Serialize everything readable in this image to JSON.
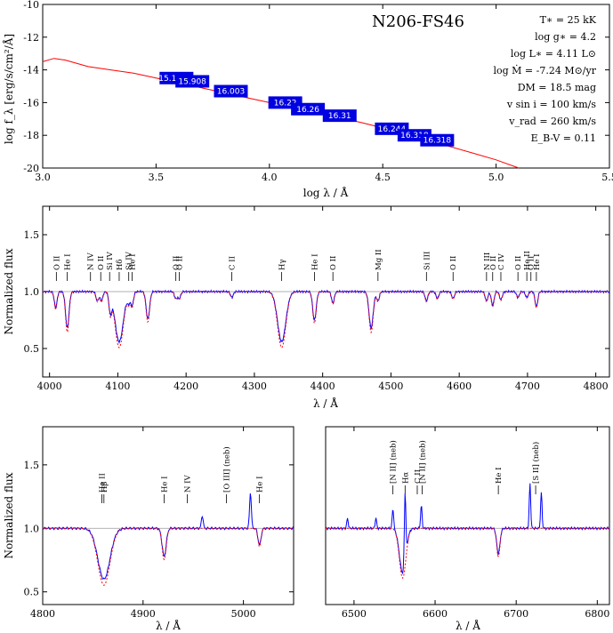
{
  "colors": {
    "model": "#ff0000",
    "observed": "#0000ff",
    "box": "#0000e0",
    "guide": "#999999"
  },
  "sed": {
    "type": "line",
    "title": "N206-FS46",
    "xlabel": "log λ / Å",
    "ylabel": "log f_λ [erg/s/cm²/Å]",
    "xlim": [
      3.0,
      5.5
    ],
    "ylim": [
      -20,
      -10
    ],
    "xticks": [
      "3.0",
      "3.5",
      "4.0",
      "4.5",
      "5.0",
      "5.5"
    ],
    "yticks": [
      "-10",
      "-12",
      "-14",
      "-16",
      "-18",
      "-20"
    ],
    "params": [
      "T∗ = 25 kK",
      "log g∗ = 4.2",
      "log L∗ = 4.11 L⊙",
      "log Ṁ = -7.24 M⊙/yr",
      "DM = 18.5 mag",
      "v sin i = 100 km/s",
      "v_rad = 260 km/s",
      "E_B-V = 0.11"
    ],
    "model_x": [
      3.0,
      3.05,
      3.1,
      3.2,
      3.3,
      3.4,
      3.5,
      3.6,
      3.7,
      3.8,
      3.9,
      4.0,
      4.1,
      4.2,
      4.3,
      4.4,
      4.5,
      4.6,
      4.7,
      4.8,
      4.9,
      5.0,
      5.1
    ],
    "model_y": [
      -13.5,
      -13.3,
      -13.4,
      -13.8,
      -14.0,
      -14.2,
      -14.5,
      -14.8,
      -15.1,
      -15.4,
      -15.7,
      -16.0,
      -16.3,
      -16.6,
      -16.9,
      -17.2,
      -17.55,
      -17.9,
      -18.3,
      -18.7,
      -19.1,
      -19.5,
      -20.0
    ],
    "photometry": [
      {
        "logl": 3.59,
        "logf": -14.5,
        "label": "15.15.73"
      },
      {
        "logl": 3.66,
        "logf": -14.7,
        "label": "15.908"
      },
      {
        "logl": 3.83,
        "logf": -15.3,
        "label": "16.003"
      },
      {
        "logl": 4.07,
        "logf": -16.0,
        "label": "16.22"
      },
      {
        "logl": 4.17,
        "logf": -16.4,
        "label": "16.26"
      },
      {
        "logl": 4.31,
        "logf": -16.8,
        "label": "16.31"
      },
      {
        "logl": 4.54,
        "logf": -17.6,
        "label": "16.244"
      },
      {
        "logl": 4.64,
        "logf": -18.0,
        "label": "16.318"
      },
      {
        "logl": 4.74,
        "logf": -18.3,
        "label": "16.318"
      }
    ]
  },
  "blue": {
    "type": "line",
    "xlabel": "λ / Å",
    "ylabel": "Normalized flux",
    "xlim": [
      3990,
      4820
    ],
    "ylim": [
      0.25,
      1.75
    ],
    "xticks": [
      "4000",
      "4100",
      "4200",
      "4300",
      "4400",
      "4500",
      "4600",
      "4700",
      "4800"
    ],
    "yticks": [
      "0.5",
      "1.0",
      "1.5"
    ],
    "absorptions": [
      {
        "w": 4009,
        "d": 0.14,
        "s": 2
      },
      {
        "w": 4026,
        "d": 0.32,
        "s": 2.5
      },
      {
        "w": 4070,
        "d": 0.08,
        "s": 2
      },
      {
        "w": 4076,
        "d": 0.08,
        "s": 2
      },
      {
        "w": 4089,
        "d": 0.16,
        "s": 2
      },
      {
        "w": 4102,
        "d": 0.44,
        "s": 6
      },
      {
        "w": 4116,
        "d": 0.08,
        "s": 2
      },
      {
        "w": 4121,
        "d": 0.12,
        "s": 2
      },
      {
        "w": 4144,
        "d": 0.24,
        "s": 2.5
      },
      {
        "w": 4185,
        "d": 0.06,
        "s": 2
      },
      {
        "w": 4190,
        "d": 0.06,
        "s": 2
      },
      {
        "w": 4267,
        "d": 0.05,
        "s": 2
      },
      {
        "w": 4340,
        "d": 0.44,
        "s": 6
      },
      {
        "w": 4388,
        "d": 0.25,
        "s": 2.5
      },
      {
        "w": 4415,
        "d": 0.1,
        "s": 2
      },
      {
        "w": 4471,
        "d": 0.32,
        "s": 3
      },
      {
        "w": 4481,
        "d": 0.08,
        "s": 2
      },
      {
        "w": 4552,
        "d": 0.08,
        "s": 2
      },
      {
        "w": 4568,
        "d": 0.06,
        "s": 2
      },
      {
        "w": 4591,
        "d": 0.06,
        "s": 2
      },
      {
        "w": 4640,
        "d": 0.08,
        "s": 2
      },
      {
        "w": 4649,
        "d": 0.12,
        "s": 2
      },
      {
        "w": 4661,
        "d": 0.07,
        "s": 2
      },
      {
        "w": 4686,
        "d": 0.05,
        "s": 2
      },
      {
        "w": 4699,
        "d": 0.05,
        "s": 2
      },
      {
        "w": 4713,
        "d": 0.13,
        "s": 2
      }
    ],
    "ids": [
      {
        "w": 4010,
        "t": "O II"
      },
      {
        "w": 4026,
        "t": "He I"
      },
      {
        "w": 4060,
        "t": "N IV"
      },
      {
        "w": 4075,
        "t": "O II"
      },
      {
        "w": 4088,
        "t": "Si IV"
      },
      {
        "w": 4102,
        "t": "Hδ"
      },
      {
        "w": 4116,
        "t": "Si IV"
      },
      {
        "w": 4121,
        "t": "He I"
      },
      {
        "w": 4185,
        "t": "O II"
      },
      {
        "w": 4190,
        "t": "O II"
      },
      {
        "w": 4267,
        "t": "C II"
      },
      {
        "w": 4340,
        "t": "Hγ"
      },
      {
        "w": 4388,
        "t": "He I"
      },
      {
        "w": 4415,
        "t": "O II"
      },
      {
        "w": 4481,
        "t": "Mg II"
      },
      {
        "w": 4552,
        "t": "Si III"
      },
      {
        "w": 4591,
        "t": "O II"
      },
      {
        "w": 4640,
        "t": "N III"
      },
      {
        "w": 4649,
        "t": "O II"
      },
      {
        "w": 4661,
        "t": "C IV"
      },
      {
        "w": 4686,
        "t": "O II"
      },
      {
        "w": 4699,
        "t": "He II"
      },
      {
        "w": 4705,
        "t": "O II"
      },
      {
        "w": 4713,
        "t": "He I"
      }
    ]
  },
  "hbeta": {
    "type": "line",
    "xlabel": "λ / Å",
    "ylabel": "Normalized flux",
    "xlim": [
      4800,
      5050
    ],
    "ylim": [
      0.4,
      1.8
    ],
    "xticks": [
      "4800",
      "4900",
      "5000"
    ],
    "yticks": [
      "0.5",
      "1.0",
      "1.5"
    ],
    "absorptions": [
      {
        "w": 4861,
        "d": 0.4,
        "s": 6
      },
      {
        "w": 4921,
        "d": 0.22,
        "s": 2
      },
      {
        "w": 5016,
        "d": 0.13,
        "s": 1.5
      }
    ],
    "emissions": [
      {
        "w": 4959,
        "h": 0.1
      },
      {
        "w": 5007,
        "h": 0.28
      }
    ],
    "ids": [
      {
        "w": 4859,
        "t": "He II"
      },
      {
        "w": 4861,
        "t": "Hβ"
      },
      {
        "w": 4921,
        "t": "He I"
      },
      {
        "w": 4944,
        "t": "N IV"
      },
      {
        "w": 4983,
        "t": "[O III] (neb)"
      },
      {
        "w": 5016,
        "t": "He I"
      }
    ]
  },
  "halpha": {
    "type": "line",
    "xlabel": "λ / Å",
    "ylabel": "",
    "xlim": [
      6465,
      6815
    ],
    "ylim": [
      0.4,
      1.8
    ],
    "xticks": [
      "6500",
      "6600",
      "6700",
      "6800"
    ],
    "yticks": [],
    "absorptions": [
      {
        "w": 6560,
        "d": 0.35,
        "s": 4
      },
      {
        "w": 6678,
        "d": 0.2,
        "s": 2
      }
    ],
    "emissions": [
      {
        "w": 6548,
        "h": 0.16
      },
      {
        "w": 6563,
        "h": 0.55
      },
      {
        "w": 6583,
        "h": 0.18
      },
      {
        "w": 6717,
        "h": 0.35
      },
      {
        "w": 6731,
        "h": 0.28
      },
      {
        "w": 6527,
        "h": 0.08
      },
      {
        "w": 6492,
        "h": 0.08
      }
    ],
    "ids": [
      {
        "w": 6548,
        "t": "[N II] (neb)"
      },
      {
        "w": 6563,
        "t": "Hα"
      },
      {
        "w": 6578,
        "t": "C II"
      },
      {
        "w": 6584,
        "t": "[N II] (neb)"
      },
      {
        "w": 6678,
        "t": "He I"
      },
      {
        "w": 6724,
        "t": "[S II] (neb)"
      }
    ]
  }
}
